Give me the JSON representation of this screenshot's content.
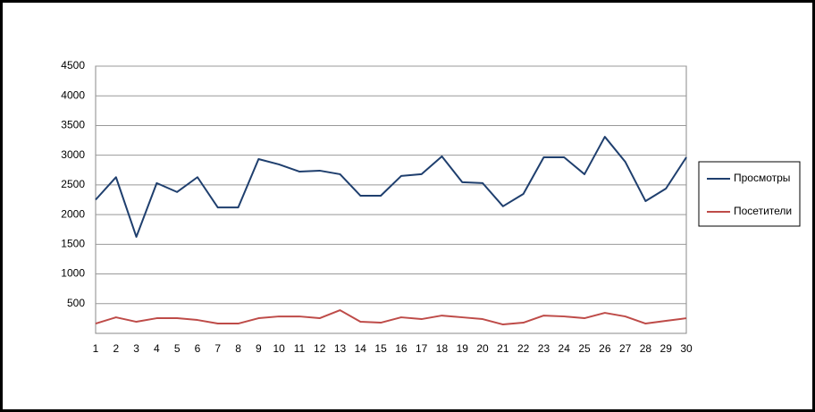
{
  "chart_data": {
    "type": "line",
    "x": [
      1,
      2,
      3,
      4,
      5,
      6,
      7,
      8,
      9,
      10,
      11,
      12,
      13,
      14,
      15,
      16,
      17,
      18,
      19,
      20,
      21,
      22,
      23,
      24,
      25,
      26,
      27,
      28,
      29,
      30
    ],
    "xlim": [
      1,
      30
    ],
    "xticks": [
      1,
      2,
      3,
      4,
      5,
      6,
      7,
      8,
      9,
      10,
      11,
      12,
      13,
      14,
      15,
      16,
      17,
      18,
      19,
      20,
      21,
      22,
      23,
      24,
      25,
      26,
      27,
      28,
      29,
      30
    ],
    "ylim": [
      0,
      4500
    ],
    "yticks": [
      500,
      1000,
      1500,
      2000,
      2500,
      3000,
      3500,
      4000,
      4500
    ],
    "grid": true,
    "legend": "right",
    "series": [
      {
        "name": "Просмотры",
        "color": "#1f3f6e",
        "values": [
          2250,
          2630,
          1625,
          2530,
          2380,
          2630,
          2120,
          2120,
          2935,
          2845,
          2725,
          2740,
          2680,
          2318,
          2318,
          2650,
          2680,
          2980,
          2545,
          2530,
          2140,
          2348,
          2965,
          2965,
          2680,
          3310,
          2890,
          2227,
          2438,
          2965
        ]
      },
      {
        "name": "Посетители",
        "color": "#be4b48",
        "values": [
          165,
          270,
          195,
          255,
          255,
          225,
          165,
          165,
          255,
          285,
          285,
          255,
          390,
          195,
          180,
          270,
          240,
          300,
          270,
          240,
          150,
          180,
          300,
          285,
          255,
          345,
          285,
          165,
          210,
          255
        ]
      }
    ]
  }
}
